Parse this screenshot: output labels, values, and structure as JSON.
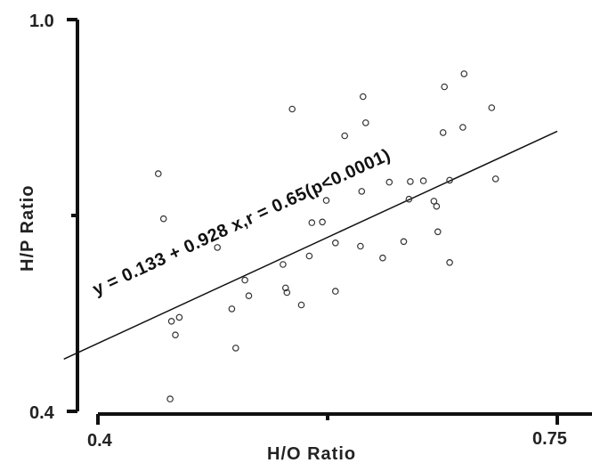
{
  "chart_data": {
    "type": "scatter",
    "xlabel": "H/O Ratio",
    "ylabel": "H/P Ratio",
    "xlim": [
      0.4,
      0.75
    ],
    "ylim": [
      0.4,
      1.0
    ],
    "x_ticks": [
      "0.4",
      "0.75"
    ],
    "y_ticks": [
      "1.0",
      "0.4"
    ],
    "grid": false,
    "annotation": "y = 0.133 + 0.928 x,r = 0.65(p<0.0001)",
    "regression": {
      "intercept": 0.133,
      "slope": 0.928,
      "r": 0.65
    },
    "points": [
      {
        "x": 0.446,
        "y": 0.764
      },
      {
        "x": 0.45,
        "y": 0.695
      },
      {
        "x": 0.456,
        "y": 0.538
      },
      {
        "x": 0.459,
        "y": 0.517
      },
      {
        "x": 0.462,
        "y": 0.544
      },
      {
        "x": 0.455,
        "y": 0.419
      },
      {
        "x": 0.491,
        "y": 0.651
      },
      {
        "x": 0.502,
        "y": 0.557
      },
      {
        "x": 0.505,
        "y": 0.497
      },
      {
        "x": 0.512,
        "y": 0.601
      },
      {
        "x": 0.515,
        "y": 0.577
      },
      {
        "x": 0.541,
        "y": 0.625
      },
      {
        "x": 0.543,
        "y": 0.589
      },
      {
        "x": 0.544,
        "y": 0.582
      },
      {
        "x": 0.548,
        "y": 0.863
      },
      {
        "x": 0.555,
        "y": 0.563
      },
      {
        "x": 0.561,
        "y": 0.638
      },
      {
        "x": 0.563,
        "y": 0.689
      },
      {
        "x": 0.571,
        "y": 0.69
      },
      {
        "x": 0.574,
        "y": 0.723
      },
      {
        "x": 0.581,
        "y": 0.658
      },
      {
        "x": 0.581,
        "y": 0.584
      },
      {
        "x": 0.588,
        "y": 0.822
      },
      {
        "x": 0.6,
        "y": 0.653
      },
      {
        "x": 0.601,
        "y": 0.737
      },
      {
        "x": 0.602,
        "y": 0.882
      },
      {
        "x": 0.604,
        "y": 0.842
      },
      {
        "x": 0.617,
        "y": 0.635
      },
      {
        "x": 0.622,
        "y": 0.751
      },
      {
        "x": 0.633,
        "y": 0.66
      },
      {
        "x": 0.637,
        "y": 0.725
      },
      {
        "x": 0.638,
        "y": 0.752
      },
      {
        "x": 0.648,
        "y": 0.753
      },
      {
        "x": 0.656,
        "y": 0.722
      },
      {
        "x": 0.658,
        "y": 0.714
      },
      {
        "x": 0.659,
        "y": 0.675
      },
      {
        "x": 0.663,
        "y": 0.827
      },
      {
        "x": 0.664,
        "y": 0.897
      },
      {
        "x": 0.668,
        "y": 0.754
      },
      {
        "x": 0.668,
        "y": 0.628
      },
      {
        "x": 0.678,
        "y": 0.835
      },
      {
        "x": 0.679,
        "y": 0.917
      },
      {
        "x": 0.7,
        "y": 0.865
      },
      {
        "x": 0.703,
        "y": 0.756
      }
    ]
  }
}
